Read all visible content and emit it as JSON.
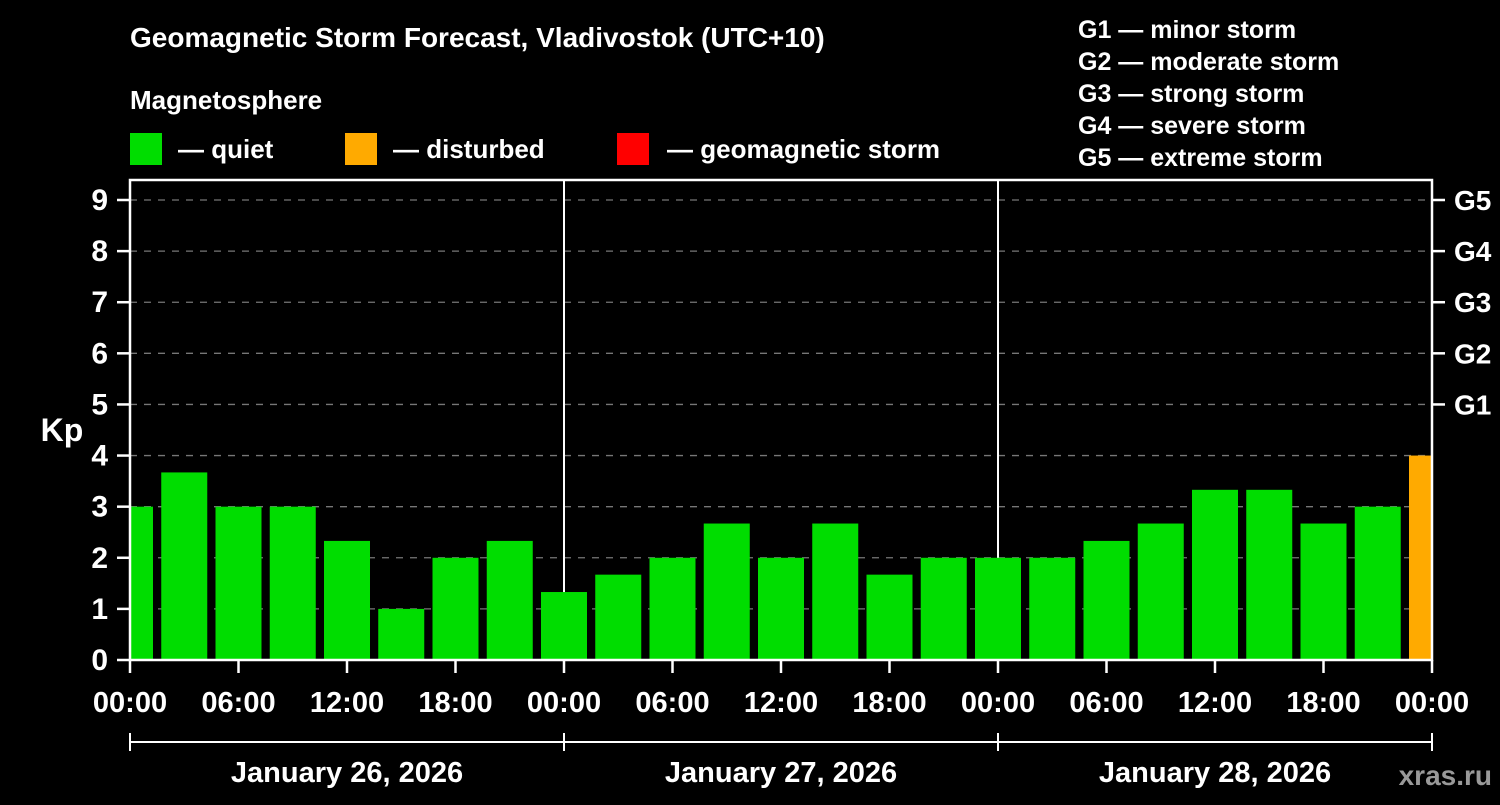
{
  "title": "Geomagnetic Storm Forecast, Vladivostok (UTC+10)",
  "subtitle": "Magnetosphere",
  "legend": {
    "quiet": "— quiet",
    "disturbed": "— disturbed",
    "storm": "— geomagnetic storm"
  },
  "g_legend": [
    "G1 — minor storm",
    "G2 — moderate storm",
    "G3 — strong storm",
    "G4 — severe storm",
    "G5 — extreme storm"
  ],
  "watermark": "xras.ru",
  "colors": {
    "quiet": "#00dd00",
    "disturbed": "#ffaa00",
    "storm": "#ff0000",
    "grid": "#777777",
    "axis": "#ffffff"
  },
  "chart_data": {
    "type": "bar",
    "title": "Geomagnetic Storm Forecast, Vladivostok (UTC+10)",
    "ylabel": "Kp",
    "ylim": [
      0,
      9.4
    ],
    "grid": "dashed horizontal at Kp 1-9",
    "y_ticks": [
      0,
      1,
      2,
      3,
      4,
      5,
      6,
      7,
      8,
      9
    ],
    "right_axis": [
      {
        "kp": 9,
        "label": "G5"
      },
      {
        "kp": 8,
        "label": "G4"
      },
      {
        "kp": 7,
        "label": "G3"
      },
      {
        "kp": 6,
        "label": "G2"
      },
      {
        "kp": 5,
        "label": "G1"
      }
    ],
    "x_ticks": [
      {
        "hour": 0,
        "label": "00:00"
      },
      {
        "hour": 6,
        "label": "06:00"
      },
      {
        "hour": 12,
        "label": "12:00"
      },
      {
        "hour": 18,
        "label": "18:00"
      },
      {
        "hour": 24,
        "label": "00:00"
      },
      {
        "hour": 30,
        "label": "06:00"
      },
      {
        "hour": 36,
        "label": "12:00"
      },
      {
        "hour": 42,
        "label": "18:00"
      },
      {
        "hour": 48,
        "label": "00:00"
      },
      {
        "hour": 54,
        "label": "06:00"
      },
      {
        "hour": 60,
        "label": "12:00"
      },
      {
        "hour": 66,
        "label": "18:00"
      },
      {
        "hour": 72,
        "label": "00:00"
      }
    ],
    "day_separators_hours": [
      24,
      48
    ],
    "days": [
      "January 26, 2026",
      "January 27, 2026",
      "January 28, 2026"
    ],
    "bars": [
      {
        "hour": 0,
        "kp": 3.0,
        "state": "quiet"
      },
      {
        "hour": 3,
        "kp": 3.67,
        "state": "quiet"
      },
      {
        "hour": 6,
        "kp": 3.0,
        "state": "quiet"
      },
      {
        "hour": 9,
        "kp": 3.0,
        "state": "quiet"
      },
      {
        "hour": 12,
        "kp": 2.33,
        "state": "quiet"
      },
      {
        "hour": 15,
        "kp": 1.0,
        "state": "quiet"
      },
      {
        "hour": 18,
        "kp": 2.0,
        "state": "quiet"
      },
      {
        "hour": 21,
        "kp": 2.33,
        "state": "quiet"
      },
      {
        "hour": 24,
        "kp": 1.33,
        "state": "quiet"
      },
      {
        "hour": 27,
        "kp": 1.67,
        "state": "quiet"
      },
      {
        "hour": 30,
        "kp": 2.0,
        "state": "quiet"
      },
      {
        "hour": 33,
        "kp": 2.67,
        "state": "quiet"
      },
      {
        "hour": 36,
        "kp": 2.0,
        "state": "quiet"
      },
      {
        "hour": 39,
        "kp": 2.67,
        "state": "quiet"
      },
      {
        "hour": 42,
        "kp": 1.67,
        "state": "quiet"
      },
      {
        "hour": 45,
        "kp": 2.0,
        "state": "quiet"
      },
      {
        "hour": 48,
        "kp": 2.0,
        "state": "quiet"
      },
      {
        "hour": 51,
        "kp": 2.0,
        "state": "quiet"
      },
      {
        "hour": 54,
        "kp": 2.33,
        "state": "quiet"
      },
      {
        "hour": 57,
        "kp": 2.67,
        "state": "quiet"
      },
      {
        "hour": 60,
        "kp": 3.33,
        "state": "quiet"
      },
      {
        "hour": 63,
        "kp": 3.33,
        "state": "quiet"
      },
      {
        "hour": 66,
        "kp": 2.67,
        "state": "quiet"
      },
      {
        "hour": 69,
        "kp": 3.0,
        "state": "quiet"
      },
      {
        "hour": 72,
        "kp": 4.0,
        "state": "disturbed"
      }
    ]
  }
}
